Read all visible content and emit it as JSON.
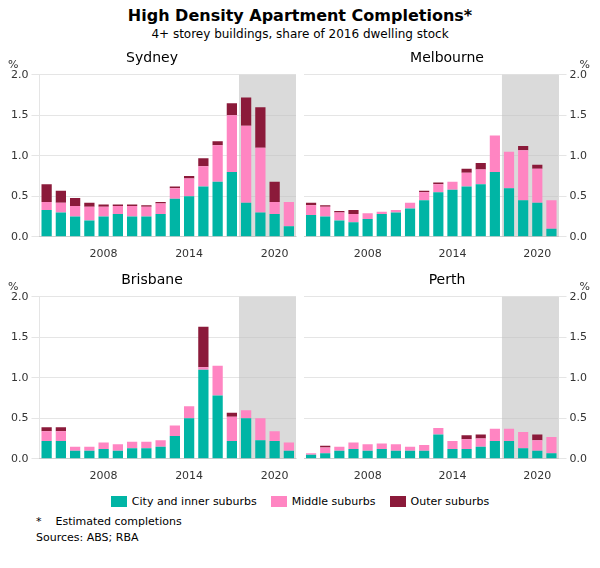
{
  "title": "High Density Apartment Completions*",
  "subtitle": "4+ storey buildings, share of 2016 dwelling stock",
  "annotations": [
    "*    Estimated completions",
    "Sources: ABS; RBA"
  ],
  "legend": "bottom",
  "chart_data": [
    {
      "type": "bar",
      "title": "Sydney",
      "ylabel": "%",
      "stacked": true,
      "grid": true,
      "shade_from_index": 14,
      "categories": [
        null,
        null,
        null,
        null,
        "2008",
        null,
        null,
        null,
        null,
        null,
        "2014",
        null,
        null,
        null,
        null,
        null,
        "2020",
        null
      ],
      "ylim": [
        0.0,
        2.0
      ],
      "yticks": [
        {
          "value": 0.0,
          "label": "0.0"
        },
        {
          "value": 0.5,
          "label": "0.5"
        },
        {
          "value": 1.0,
          "label": "1.0"
        },
        {
          "value": 1.5,
          "label": "1.5"
        },
        {
          "value": 2.0,
          "label": "2.0"
        }
      ],
      "series": [
        {
          "name": "City and inner suburbs",
          "color": "#00B5A5",
          "values": [
            0.33,
            0.3,
            0.25,
            0.2,
            0.25,
            0.28,
            0.25,
            0.25,
            0.28,
            0.47,
            0.5,
            0.62,
            0.68,
            0.8,
            0.42,
            0.3,
            0.28,
            0.13
          ]
        },
        {
          "name": "Middle suburbs",
          "color": "#FF85C2",
          "values": [
            0.1,
            0.12,
            0.13,
            0.17,
            0.12,
            0.1,
            0.13,
            0.12,
            0.13,
            0.13,
            0.22,
            0.25,
            0.45,
            0.7,
            0.95,
            0.8,
            0.15,
            0.3
          ]
        },
        {
          "name": "Outer suburbs",
          "color": "#8B1A3A",
          "values": [
            0.22,
            0.15,
            0.1,
            0.05,
            0.03,
            0.02,
            0.02,
            0.02,
            0.02,
            0.02,
            0.03,
            0.1,
            0.05,
            0.15,
            0.35,
            0.5,
            0.25,
            0.0
          ]
        }
      ]
    },
    {
      "type": "bar",
      "title": "Melbourne",
      "ylabel": "%",
      "stacked": true,
      "grid": true,
      "shade_from_index": 14,
      "categories": [
        null,
        null,
        null,
        null,
        "2008",
        null,
        null,
        null,
        null,
        null,
        "2014",
        null,
        null,
        null,
        null,
        null,
        "2020",
        null
      ],
      "ylim": [
        0.0,
        2.0
      ],
      "yticks": [
        {
          "value": 0.0,
          "label": "0.0"
        },
        {
          "value": 0.5,
          "label": "0.5"
        },
        {
          "value": 1.0,
          "label": "1.0"
        },
        {
          "value": 1.5,
          "label": "1.5"
        },
        {
          "value": 2.0,
          "label": "2.0"
        }
      ],
      "series": [
        {
          "name": "City and inner suburbs",
          "color": "#00B5A5",
          "values": [
            0.27,
            0.25,
            0.2,
            0.18,
            0.22,
            0.28,
            0.3,
            0.35,
            0.45,
            0.55,
            0.58,
            0.62,
            0.65,
            0.8,
            0.6,
            0.45,
            0.42,
            0.1
          ]
        },
        {
          "name": "Middle suburbs",
          "color": "#FF85C2",
          "values": [
            0.12,
            0.12,
            0.1,
            0.1,
            0.07,
            0.03,
            0.03,
            0.07,
            0.1,
            0.1,
            0.1,
            0.17,
            0.18,
            0.45,
            0.45,
            0.62,
            0.42,
            0.35
          ]
        },
        {
          "name": "Outer suburbs",
          "color": "#8B1A3A",
          "values": [
            0.03,
            0.02,
            0.02,
            0.05,
            0.0,
            0.0,
            0.0,
            0.0,
            0.02,
            0.02,
            0.0,
            0.05,
            0.08,
            0.0,
            0.0,
            0.05,
            0.05,
            0.0
          ]
        }
      ]
    },
    {
      "type": "bar",
      "title": "Brisbane",
      "ylabel": "%",
      "stacked": true,
      "grid": true,
      "shade_from_index": 14,
      "categories": [
        null,
        null,
        null,
        null,
        "2008",
        null,
        null,
        null,
        null,
        null,
        "2014",
        null,
        null,
        null,
        null,
        null,
        "2020",
        null
      ],
      "ylim": [
        0.0,
        2.0
      ],
      "yticks": [
        {
          "value": 0.0,
          "label": "0.0"
        },
        {
          "value": 0.5,
          "label": "0.5"
        },
        {
          "value": 1.0,
          "label": "1.0"
        },
        {
          "value": 1.5,
          "label": "1.5"
        },
        {
          "value": 2.0,
          "label": "2.0"
        }
      ],
      "series": [
        {
          "name": "City and inner suburbs",
          "color": "#00B5A5",
          "values": [
            0.22,
            0.22,
            0.1,
            0.1,
            0.12,
            0.1,
            0.13,
            0.13,
            0.15,
            0.28,
            0.5,
            1.1,
            0.78,
            0.22,
            0.5,
            0.23,
            0.22,
            0.1
          ]
        },
        {
          "name": "Middle suburbs",
          "color": "#FF85C2",
          "values": [
            0.12,
            0.12,
            0.05,
            0.05,
            0.08,
            0.08,
            0.08,
            0.08,
            0.08,
            0.13,
            0.15,
            0.03,
            0.37,
            0.3,
            0.1,
            0.27,
            0.12,
            0.1
          ]
        },
        {
          "name": "Outer suburbs",
          "color": "#8B1A3A",
          "values": [
            0.05,
            0.05,
            0.0,
            0.0,
            0.0,
            0.0,
            0.0,
            0.0,
            0.0,
            0.0,
            0.0,
            0.5,
            0.0,
            0.05,
            0.0,
            0.0,
            0.0,
            0.0
          ]
        }
      ]
    },
    {
      "type": "bar",
      "title": "Perth",
      "ylabel": "%",
      "stacked": true,
      "grid": true,
      "shade_from_index": 14,
      "categories": [
        null,
        null,
        null,
        null,
        "2008",
        null,
        null,
        null,
        null,
        null,
        "2014",
        null,
        null,
        null,
        null,
        null,
        "2020",
        null
      ],
      "ylim": [
        0.0,
        2.0
      ],
      "yticks": [
        {
          "value": 0.0,
          "label": "0.0"
        },
        {
          "value": 0.5,
          "label": "0.5"
        },
        {
          "value": 1.0,
          "label": "1.0"
        },
        {
          "value": 1.5,
          "label": "1.5"
        },
        {
          "value": 2.0,
          "label": "2.0"
        }
      ],
      "series": [
        {
          "name": "City and inner suburbs",
          "color": "#00B5A5",
          "values": [
            0.05,
            0.07,
            0.1,
            0.12,
            0.1,
            0.12,
            0.1,
            0.1,
            0.1,
            0.3,
            0.12,
            0.12,
            0.15,
            0.22,
            0.22,
            0.13,
            0.1,
            0.07
          ]
        },
        {
          "name": "Middle suburbs",
          "color": "#FF85C2",
          "values": [
            0.02,
            0.07,
            0.05,
            0.08,
            0.08,
            0.07,
            0.08,
            0.05,
            0.07,
            0.08,
            0.1,
            0.12,
            0.1,
            0.15,
            0.15,
            0.2,
            0.13,
            0.2
          ]
        },
        {
          "name": "Outer suburbs",
          "color": "#8B1A3A",
          "values": [
            0.0,
            0.02,
            0.0,
            0.0,
            0.0,
            0.0,
            0.0,
            0.0,
            0.0,
            0.0,
            0.0,
            0.05,
            0.05,
            0.0,
            0.0,
            0.0,
            0.07,
            0.0
          ]
        }
      ]
    }
  ]
}
